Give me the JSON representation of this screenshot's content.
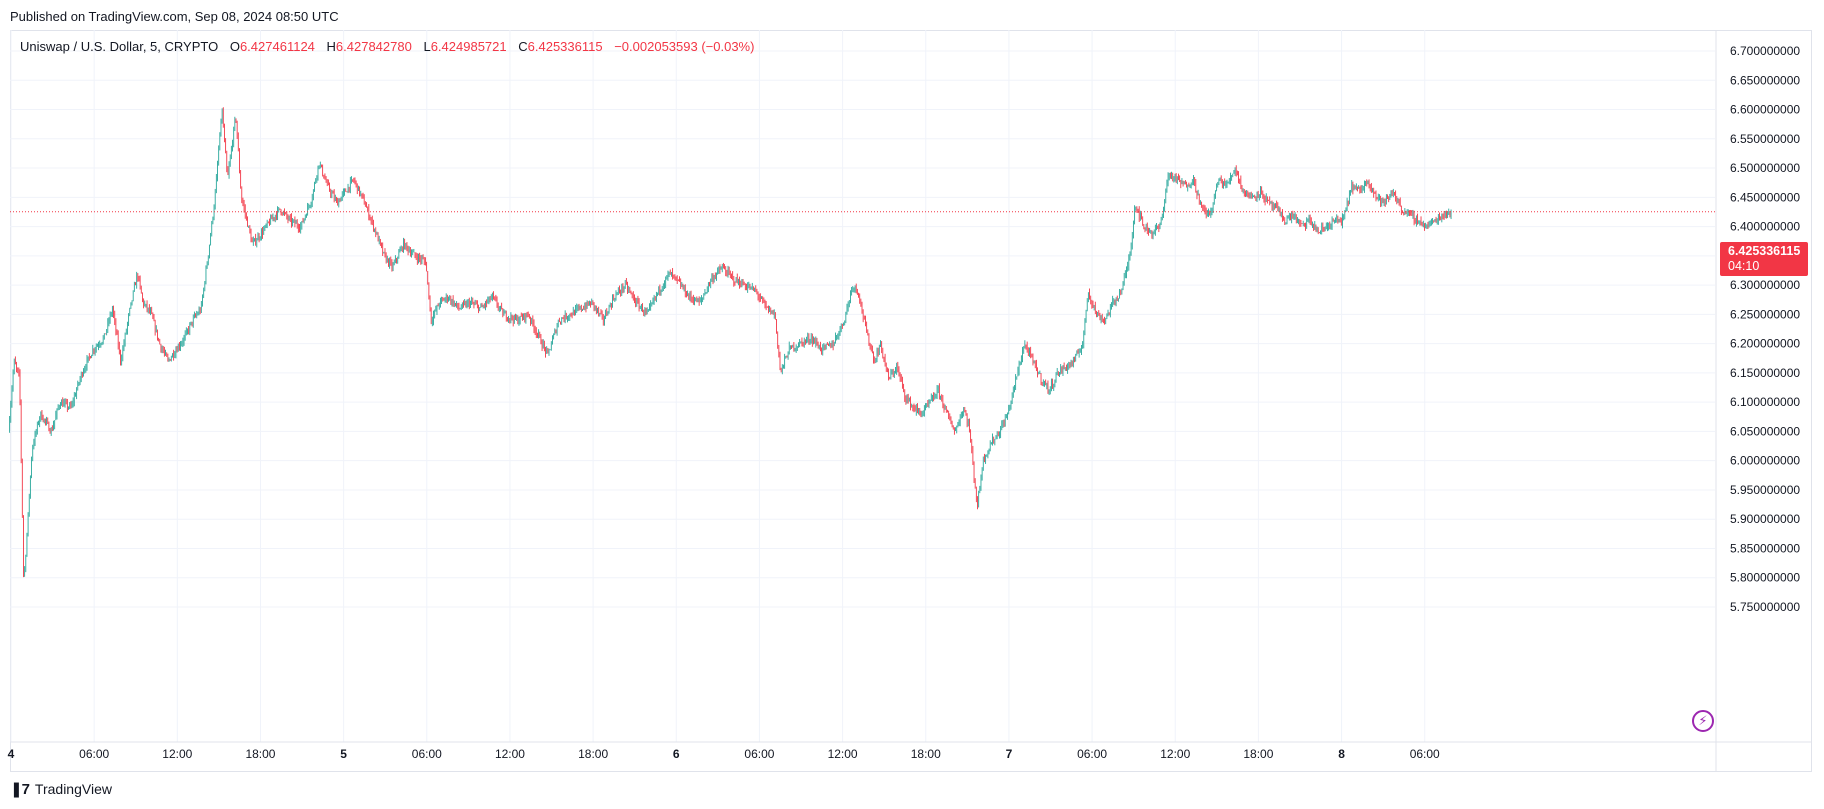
{
  "header": {
    "published": "Published on TradingView.com, Sep 08, 2024 08:50 UTC"
  },
  "legend": {
    "symbol": "Uniswap / U.S. Dollar, 5, CRYPTO",
    "open_label": "O",
    "open": "6.427461124",
    "high_label": "H",
    "high": "6.427842780",
    "low_label": "L",
    "low": "6.424985721",
    "close_label": "C",
    "close": "6.425336115",
    "change": "−0.002053593 (−0.03%)"
  },
  "price_tag": {
    "price": "6.425336115",
    "countdown": "04:10"
  },
  "footer": {
    "brand": "TradingView"
  },
  "colors": {
    "up": "#26a69a",
    "down": "#f23645",
    "grid": "#f0f3fa",
    "axis_text": "#131722",
    "last_price_line": "#f23645"
  },
  "icons": {
    "brand_logo": "tradingview-logo-icon",
    "bolt": "lightning-bolt-icon"
  },
  "chart_data": {
    "type": "candlestick",
    "symbol": "UNIUSD",
    "interval": "5",
    "ylim": [
      5.7,
      6.73
    ],
    "yticks": [
      "6.700000000",
      "6.650000000",
      "6.600000000",
      "6.550000000",
      "6.500000000",
      "6.450000000",
      "6.400000000",
      "6.350000000",
      "6.300000000",
      "6.250000000",
      "6.200000000",
      "6.150000000",
      "6.100000000",
      "6.050000000",
      "6.000000000",
      "5.950000000",
      "5.900000000",
      "5.850000000",
      "5.800000000",
      "5.750000000"
    ],
    "xticks": [
      {
        "label": "4",
        "hours": 0,
        "bold": true
      },
      {
        "label": "06:00",
        "hours": 6,
        "bold": false
      },
      {
        "label": "12:00",
        "hours": 12,
        "bold": false
      },
      {
        "label": "18:00",
        "hours": 18,
        "bold": false
      },
      {
        "label": "5",
        "hours": 24,
        "bold": true
      },
      {
        "label": "06:00",
        "hours": 30,
        "bold": false
      },
      {
        "label": "12:00",
        "hours": 36,
        "bold": false
      },
      {
        "label": "18:00",
        "hours": 42,
        "bold": false
      },
      {
        "label": "6",
        "hours": 48,
        "bold": true
      },
      {
        "label": "06:00",
        "hours": 54,
        "bold": false
      },
      {
        "label": "12:00",
        "hours": 60,
        "bold": false
      },
      {
        "label": "18:00",
        "hours": 66,
        "bold": false
      },
      {
        "label": "7",
        "hours": 72,
        "bold": true
      },
      {
        "label": "06:00",
        "hours": 78,
        "bold": false
      },
      {
        "label": "12:00",
        "hours": 84,
        "bold": false
      },
      {
        "label": "18:00",
        "hours": 90,
        "bold": false
      },
      {
        "label": "8",
        "hours": 96,
        "bold": true
      },
      {
        "label": "06:00",
        "hours": 102,
        "bold": false
      }
    ],
    "last_price": 6.425336115,
    "price_path": [
      [
        -0.1,
        6.05
      ],
      [
        0.3,
        6.17
      ],
      [
        0.7,
        6.14
      ],
      [
        1.0,
        5.79
      ],
      [
        1.2,
        5.86
      ],
      [
        1.6,
        6.02
      ],
      [
        2.2,
        6.08
      ],
      [
        3.0,
        6.05
      ],
      [
        3.6,
        6.1
      ],
      [
        4.4,
        6.09
      ],
      [
        5.2,
        6.15
      ],
      [
        6.0,
        6.19
      ],
      [
        6.8,
        6.21
      ],
      [
        7.4,
        6.26
      ],
      [
        8.0,
        6.17
      ],
      [
        8.6,
        6.25
      ],
      [
        9.2,
        6.32
      ],
      [
        9.6,
        6.27
      ],
      [
        10.2,
        6.25
      ],
      [
        10.8,
        6.2
      ],
      [
        11.4,
        6.17
      ],
      [
        12.0,
        6.19
      ],
      [
        12.6,
        6.21
      ],
      [
        13.2,
        6.24
      ],
      [
        13.8,
        6.26
      ],
      [
        14.4,
        6.37
      ],
      [
        14.8,
        6.45
      ],
      [
        15.3,
        6.6
      ],
      [
        15.7,
        6.48
      ],
      [
        16.3,
        6.59
      ],
      [
        16.7,
        6.45
      ],
      [
        17.0,
        6.42
      ],
      [
        17.5,
        6.37
      ],
      [
        18.2,
        6.39
      ],
      [
        18.8,
        6.41
      ],
      [
        19.5,
        6.43
      ],
      [
        20.2,
        6.41
      ],
      [
        21.0,
        6.4
      ],
      [
        21.8,
        6.45
      ],
      [
        22.3,
        6.51
      ],
      [
        22.9,
        6.47
      ],
      [
        23.6,
        6.44
      ],
      [
        24.2,
        6.46
      ],
      [
        24.8,
        6.48
      ],
      [
        25.6,
        6.44
      ],
      [
        26.4,
        6.39
      ],
      [
        27.0,
        6.35
      ],
      [
        27.6,
        6.33
      ],
      [
        28.4,
        6.37
      ],
      [
        29.2,
        6.35
      ],
      [
        30.0,
        6.34
      ],
      [
        30.4,
        6.24
      ],
      [
        31.0,
        6.27
      ],
      [
        31.6,
        6.28
      ],
      [
        32.4,
        6.26
      ],
      [
        33.2,
        6.27
      ],
      [
        34.0,
        6.26
      ],
      [
        34.8,
        6.28
      ],
      [
        35.6,
        6.25
      ],
      [
        36.6,
        6.24
      ],
      [
        37.4,
        6.25
      ],
      [
        38.0,
        6.22
      ],
      [
        38.8,
        6.18
      ],
      [
        39.6,
        6.24
      ],
      [
        40.4,
        6.25
      ],
      [
        41.2,
        6.26
      ],
      [
        42.0,
        6.27
      ],
      [
        42.8,
        6.24
      ],
      [
        43.6,
        6.28
      ],
      [
        44.4,
        6.3
      ],
      [
        45.2,
        6.27
      ],
      [
        46.0,
        6.25
      ],
      [
        46.8,
        6.29
      ],
      [
        47.6,
        6.32
      ],
      [
        48.4,
        6.3
      ],
      [
        49.0,
        6.28
      ],
      [
        49.8,
        6.27
      ],
      [
        50.6,
        6.31
      ],
      [
        51.4,
        6.33
      ],
      [
        52.2,
        6.31
      ],
      [
        53.0,
        6.3
      ],
      [
        53.8,
        6.29
      ],
      [
        54.6,
        6.26
      ],
      [
        55.2,
        6.25
      ],
      [
        55.6,
        6.15
      ],
      [
        56.2,
        6.19
      ],
      [
        57.0,
        6.2
      ],
      [
        57.8,
        6.21
      ],
      [
        58.6,
        6.19
      ],
      [
        59.4,
        6.2
      ],
      [
        60.2,
        6.24
      ],
      [
        60.8,
        6.3
      ],
      [
        61.2,
        6.29
      ],
      [
        61.8,
        6.22
      ],
      [
        62.4,
        6.17
      ],
      [
        62.8,
        6.2
      ],
      [
        63.4,
        6.14
      ],
      [
        64.0,
        6.16
      ],
      [
        64.6,
        6.11
      ],
      [
        65.2,
        6.09
      ],
      [
        65.8,
        6.08
      ],
      [
        66.4,
        6.1
      ],
      [
        67.0,
        6.12
      ],
      [
        67.6,
        6.08
      ],
      [
        68.2,
        6.05
      ],
      [
        68.8,
        6.09
      ],
      [
        69.2,
        6.06
      ],
      [
        69.8,
        5.92
      ],
      [
        70.2,
        6.0
      ],
      [
        70.8,
        6.03
      ],
      [
        71.4,
        6.05
      ],
      [
        72.0,
        6.08
      ],
      [
        72.6,
        6.14
      ],
      [
        73.2,
        6.2
      ],
      [
        73.8,
        6.17
      ],
      [
        74.4,
        6.14
      ],
      [
        75.0,
        6.12
      ],
      [
        75.6,
        6.15
      ],
      [
        76.2,
        6.16
      ],
      [
        76.8,
        6.17
      ],
      [
        77.4,
        6.2
      ],
      [
        77.8,
        6.29
      ],
      [
        78.4,
        6.25
      ],
      [
        79.0,
        6.24
      ],
      [
        79.6,
        6.27
      ],
      [
        80.2,
        6.29
      ],
      [
        80.8,
        6.35
      ],
      [
        81.2,
        6.44
      ],
      [
        81.8,
        6.4
      ],
      [
        82.4,
        6.39
      ],
      [
        83.0,
        6.4
      ],
      [
        83.6,
        6.49
      ],
      [
        84.2,
        6.48
      ],
      [
        84.8,
        6.47
      ],
      [
        85.4,
        6.48
      ],
      [
        86.0,
        6.43
      ],
      [
        86.6,
        6.42
      ],
      [
        87.2,
        6.48
      ],
      [
        87.8,
        6.47
      ],
      [
        88.4,
        6.5
      ],
      [
        89.0,
        6.46
      ],
      [
        89.6,
        6.45
      ],
      [
        90.2,
        6.46
      ],
      [
        90.8,
        6.44
      ],
      [
        91.4,
        6.43
      ],
      [
        92.0,
        6.41
      ],
      [
        92.6,
        6.42
      ],
      [
        93.2,
        6.4
      ],
      [
        93.8,
        6.41
      ],
      [
        94.4,
        6.39
      ],
      [
        95.0,
        6.4
      ],
      [
        95.6,
        6.41
      ],
      [
        96.2,
        6.41
      ],
      [
        96.8,
        6.47
      ],
      [
        97.4,
        6.46
      ],
      [
        98.0,
        6.48
      ],
      [
        98.6,
        6.45
      ],
      [
        99.2,
        6.44
      ],
      [
        99.8,
        6.46
      ],
      [
        100.4,
        6.43
      ],
      [
        101.0,
        6.42
      ],
      [
        101.6,
        6.41
      ],
      [
        102.2,
        6.4
      ],
      [
        102.8,
        6.41
      ],
      [
        103.4,
        6.42
      ],
      [
        103.9,
        6.425
      ]
    ]
  }
}
